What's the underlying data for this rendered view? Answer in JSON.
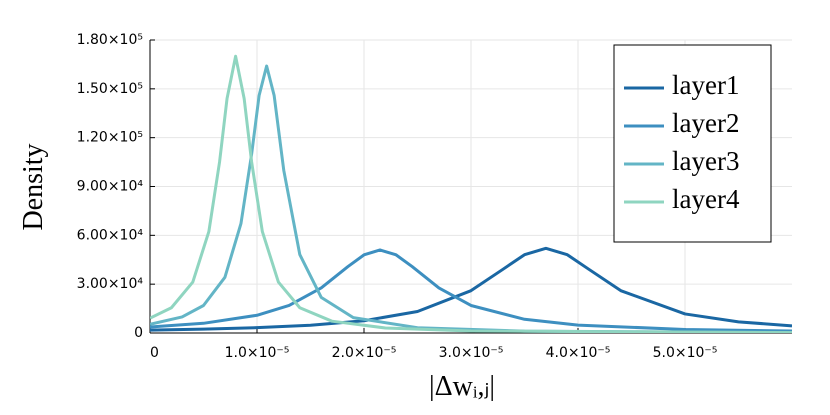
{
  "chart_data": {
    "type": "line",
    "xlabel": "|Δwᵢ,ⱼ|",
    "ylabel": "Density",
    "xlim": [
      0,
      6e-05
    ],
    "ylim": [
      0,
      180000
    ],
    "xticks": [
      0,
      {
        "value": 1e-05,
        "label": "1.0×10⁻⁵"
      },
      {
        "value": 2e-05,
        "label": "2.0×10⁻⁵"
      },
      {
        "value": 3e-05,
        "label": "3.0×10⁻⁵"
      },
      {
        "value": 4e-05,
        "label": "4.0×10⁻⁵"
      },
      {
        "value": 5e-05,
        "label": "5.0×10⁻⁵"
      }
    ],
    "yticks": [
      0,
      {
        "value": 30000,
        "label": "3.00×10⁴"
      },
      {
        "value": 60000,
        "label": "6.00×10⁴"
      },
      {
        "value": 90000,
        "label": "9.00×10⁴"
      },
      {
        "value": 120000,
        "label": "1.20×10⁵"
      },
      {
        "value": 150000,
        "label": "1.50×10⁵"
      },
      {
        "value": 180000,
        "label": "1.80×10⁵"
      }
    ],
    "grid": true,
    "legend": "upper right",
    "series": [
      {
        "name": "layer1",
        "color": "#1a67a3",
        "x": [
          0,
          5e-06,
          1e-05,
          1.5e-05,
          2e-05,
          2.5e-05,
          3e-05,
          3.3e-05,
          3.5e-05,
          3.7e-05,
          3.9e-05,
          4.1e-05,
          4.4e-05,
          5e-05,
          5.5e-05,
          6e-05
        ],
        "values": [
          1800,
          2370,
          3270,
          4780,
          7540,
          13200,
          26000,
          39200,
          48100,
          52000,
          48100,
          39200,
          26000,
          11700,
          6830,
          4410
        ]
      },
      {
        "name": "layer2",
        "color": "#3d8fc0",
        "x": [
          0,
          5e-06,
          1e-05,
          1.3e-05,
          1.6e-05,
          1.85e-05,
          2e-05,
          2.15e-05,
          2.3e-05,
          2.45e-05,
          2.7e-05,
          3e-05,
          3.5e-05,
          4e-05,
          5e-05,
          6e-05
        ],
        "values": [
          3700,
          5960,
          10900,
          16900,
          27700,
          40800,
          48000,
          51000,
          48000,
          40800,
          27700,
          16900,
          8420,
          4850,
          2160,
          1210
        ]
      },
      {
        "name": "layer3",
        "color": "#63b5c6",
        "x": [
          0,
          3e-06,
          5e-06,
          7e-06,
          8.5e-06,
          9.5e-06,
          1.02e-05,
          1.09e-05,
          1.16e-05,
          1.25e-05,
          1.4e-05,
          1.6e-05,
          1.9e-05,
          2.5e-05,
          3.5e-05,
          6e-05
        ],
        "values": [
          5340,
          9880,
          16900,
          34200,
          67200,
          110000,
          146000,
          164000,
          146000,
          100000,
          48200,
          21900,
          9430,
          3230,
          1120,
          272
        ]
      },
      {
        "name": "layer4",
        "color": "#8fd5c0",
        "x": [
          0,
          2e-06,
          4e-06,
          5.5e-06,
          6.5e-06,
          7.2e-06,
          8e-06,
          8.8e-06,
          9.5e-06,
          1.05e-05,
          1.2e-05,
          1.4e-05,
          1.7e-05,
          2.2e-05,
          3e-05,
          6e-05
        ],
        "values": [
          9090,
          15500,
          31300,
          62300,
          105000,
          144000,
          170000,
          144000,
          105000,
          62300,
          31300,
          15500,
          7260,
          3070,
          1260,
          227
        ]
      }
    ]
  }
}
